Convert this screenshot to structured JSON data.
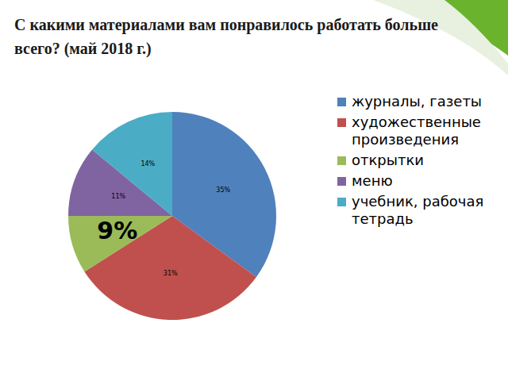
{
  "chart_data": {
    "type": "pie",
    "title": "С какими материалами вам понравилось работать больше всего? (май 2018 г.)",
    "categories": [
      "журналы, газеты",
      "художественные произведения",
      "открытки",
      "меню",
      "учебник, рабочая тетрадь"
    ],
    "values": [
      35,
      31,
      9,
      11,
      14
    ],
    "value_labels": [
      "35%",
      "31%",
      "9%",
      "11%",
      "14%"
    ],
    "data_labels": true,
    "colors": [
      "#4f81bd",
      "#c0504d",
      "#9bbb59",
      "#8064a2",
      "#4bacc6"
    ],
    "legend": "right"
  }
}
